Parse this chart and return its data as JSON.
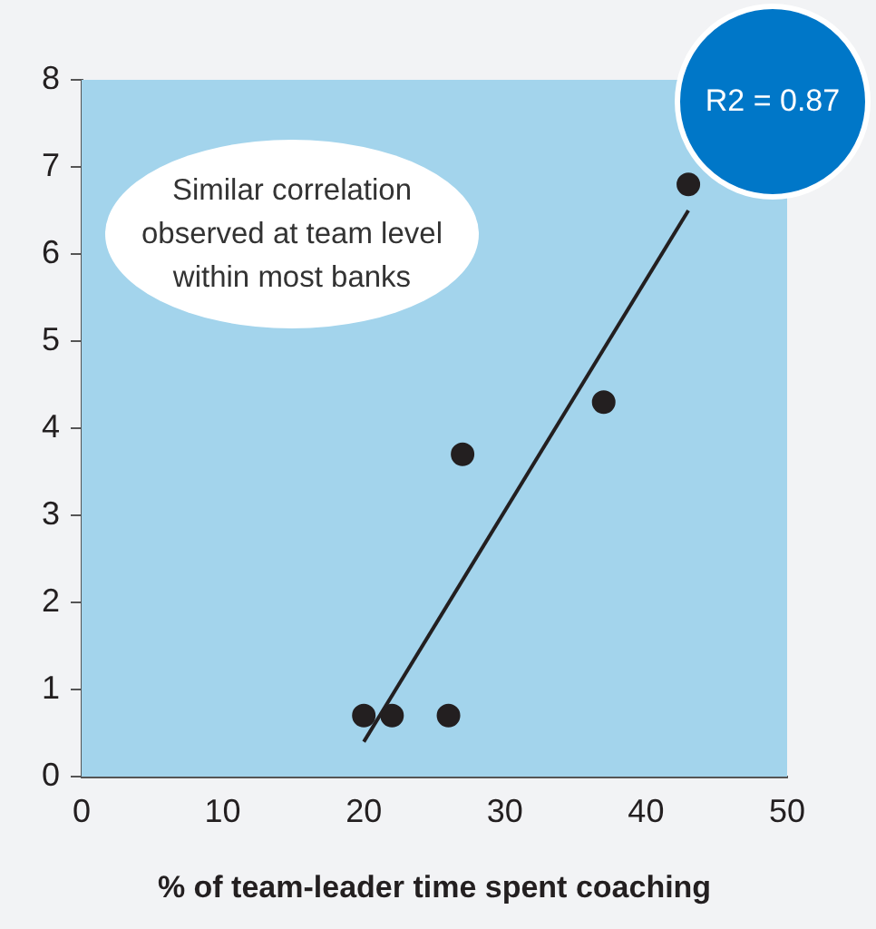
{
  "chart_data": {
    "type": "scatter",
    "xlabel": "% of team-leader time spent coaching",
    "xlim": [
      0,
      50
    ],
    "xticks": [
      0,
      10,
      20,
      30,
      40,
      50
    ],
    "ylim": [
      0,
      8
    ],
    "yticks": [
      0,
      1,
      2,
      3,
      4,
      5,
      6,
      7,
      8
    ],
    "series": [
      {
        "type": "scatter",
        "color": "#231f20",
        "x": [
          20,
          22,
          26,
          27,
          37,
          43
        ],
        "values": [
          0.7,
          0.7,
          0.7,
          3.7,
          4.3,
          6.8
        ]
      },
      {
        "type": "line",
        "color": "#231f20",
        "marker": "none",
        "x": [
          20,
          43
        ],
        "values": [
          0.4,
          6.5
        ]
      }
    ],
    "annotations": [
      "Similar correlation observed at team level within most banks",
      "R2 = 0.87"
    ],
    "marker": "circle",
    "line_style": "solid",
    "grid": false,
    "legend": false
  }
}
